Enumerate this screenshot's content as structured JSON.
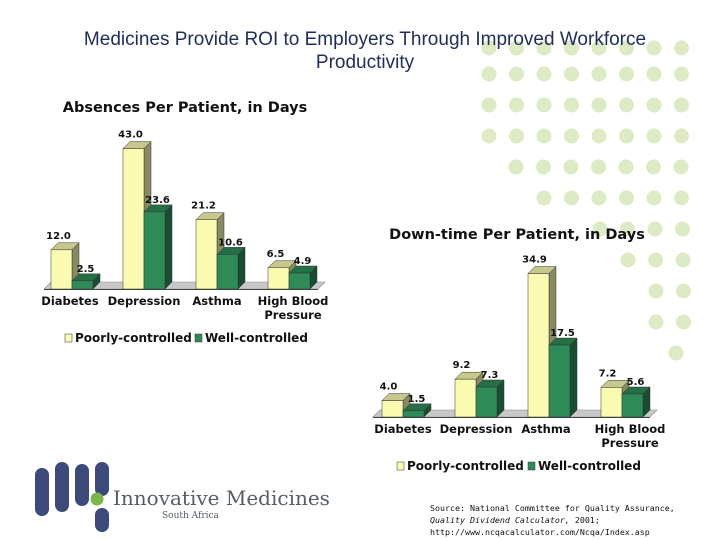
{
  "slide": {
    "title": "Medicines Provide ROI to Employers Through Improved Workforce\nProductivity"
  },
  "colors": {
    "poorly_controlled": "#fafab0",
    "well_controlled": "#2e8b57",
    "title": "#1f2d5c",
    "dots": "#dcebc4"
  },
  "chart_data": [
    {
      "type": "bar",
      "title": "Absences Per Patient, in Days",
      "categories": [
        "Diabetes",
        "Depression",
        "Asthma",
        "High Blood Pressure"
      ],
      "series": [
        {
          "name": "Poorly-controlled",
          "values": [
            12.0,
            43.0,
            21.2,
            6.5
          ]
        },
        {
          "name": "Well-controlled",
          "values": [
            2.5,
            23.6,
            10.6,
            4.9
          ]
        }
      ],
      "value_labels": [
        [
          "12.0",
          "43.0",
          "21.2",
          "6.5"
        ],
        [
          "2.5",
          "23.6",
          "10.6",
          "4.9"
        ]
      ],
      "ylim": [
        0,
        45
      ],
      "grid": false,
      "legend": "bottom"
    },
    {
      "type": "bar",
      "title": "Down-time Per Patient, in Days",
      "categories": [
        "Diabetes",
        "Depression",
        "Asthma",
        "High Blood Pressure"
      ],
      "series": [
        {
          "name": "Poorly-controlled",
          "values": [
            4.0,
            9.2,
            34.9,
            7.2
          ]
        },
        {
          "name": "Well-controlled",
          "values": [
            1.5,
            7.3,
            17.5,
            5.6
          ]
        }
      ],
      "value_labels": [
        [
          "4.0",
          "9.2",
          "34.9",
          "7.2"
        ],
        [
          "1.5",
          "7.3",
          "17.5",
          "5.6"
        ]
      ],
      "ylim": [
        0,
        36
      ],
      "grid": false,
      "legend": "bottom"
    }
  ],
  "logo": {
    "name": "Innovative Medicines",
    "sub": "South Africa"
  },
  "source": {
    "line1": "Source: National Committee for Quality Assurance,",
    "line2_em": "Quality Dividend Calculator,",
    "line2_rest": " 2001;",
    "line3": "http://www.ncqacalculator.com/Ncqa/Index.asp"
  }
}
